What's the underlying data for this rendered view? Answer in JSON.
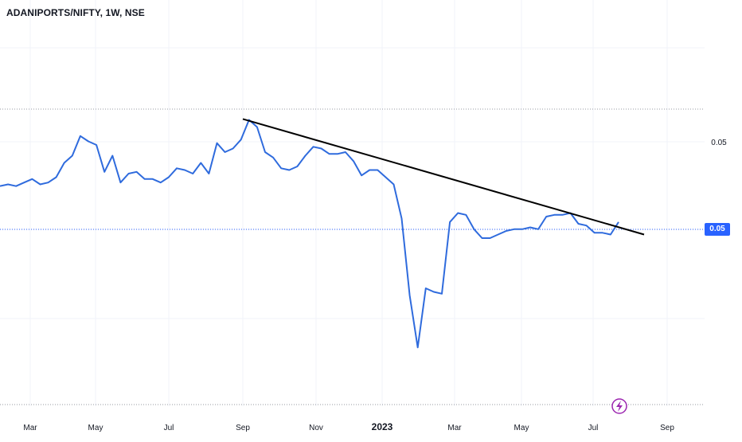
{
  "symbol_title": "ADANIPORTS/NIFTY, 1W, NSE",
  "current_price_label": "0.05",
  "colors": {
    "line": "#2f6bdd",
    "trendline": "#000000",
    "grid": "#f0f3fa",
    "dotted_level": "#2962ff",
    "frame_dots": "#9598a1",
    "price_tag_bg": "#2962ff",
    "lightning_icon": "#9c27b0"
  },
  "icons": {
    "lightning": "lightning-bolt-icon"
  },
  "chart_data": {
    "type": "line",
    "title": "ADANIPORTS/NIFTY, 1W, NSE",
    "x_tick_labels": [
      "Mar",
      "May",
      "Jul",
      "Sep",
      "Nov",
      "2023",
      "Mar",
      "May",
      "Jul",
      "Sep"
    ],
    "y_tick_labels": [
      "0.05",
      "0.05"
    ],
    "series": [
      {
        "values": [
          0.0505,
          0.0506,
          0.0505,
          0.0507,
          0.0509,
          0.0506,
          0.0507,
          0.051,
          0.0518,
          0.0522,
          0.0533,
          0.053,
          0.0528,
          0.0513,
          0.0522,
          0.0507,
          0.0512,
          0.0513,
          0.0509,
          0.0509,
          0.0507,
          0.051,
          0.0515,
          0.0514,
          0.0512,
          0.0518,
          0.0512,
          0.0529,
          0.0524,
          0.0526,
          0.0531,
          0.0542,
          0.0538,
          0.0524,
          0.0521,
          0.0515,
          0.0514,
          0.0516,
          0.0522,
          0.0527,
          0.0526,
          0.0523,
          0.0523,
          0.0524,
          0.0519,
          0.0511,
          0.0514,
          0.0514,
          0.051,
          0.0506,
          0.0487,
          0.0444,
          0.0415,
          0.0448,
          0.0446,
          0.0445,
          0.0485,
          0.049,
          0.0489,
          0.0481,
          0.0476,
          0.0476,
          0.0478,
          0.048,
          0.0481,
          0.0481,
          0.0482,
          0.0481,
          0.0488,
          0.0489,
          0.0489,
          0.049,
          0.0484,
          0.0483,
          0.0479,
          0.0479,
          0.0478,
          0.0485
        ]
      }
    ],
    "trendline": {
      "x_start": 0.0,
      "x_end": 1.0,
      "y_start": 0.05425,
      "y_end": 0.0478
    },
    "current_value": 0.05,
    "grid": true,
    "legend": "none",
    "price_scale_side": "right"
  }
}
